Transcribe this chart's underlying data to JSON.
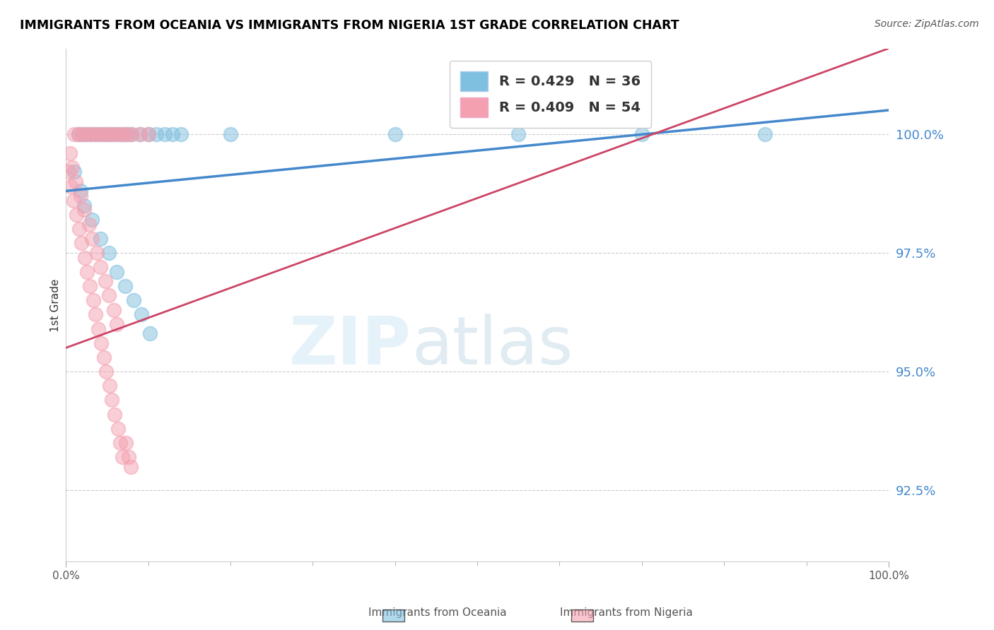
{
  "title": "IMMIGRANTS FROM OCEANIA VS IMMIGRANTS FROM NIGERIA 1ST GRADE CORRELATION CHART",
  "source": "Source: ZipAtlas.com",
  "ylabel": "1st Grade",
  "yticks": [
    92.5,
    95.0,
    97.5,
    100.0
  ],
  "ytick_labels": [
    "92.5%",
    "95.0%",
    "97.5%",
    "100.0%"
  ],
  "xmin": 0.0,
  "xmax": 100.0,
  "ymin": 91.0,
  "ymax": 101.8,
  "legend_blue_label": "R = 0.429   N = 36",
  "legend_pink_label": "R = 0.409   N = 54",
  "blue_color": "#7fbfdf",
  "pink_color": "#f4a0b0",
  "blue_line_color": "#4488cc",
  "pink_line_color": "#cc4466",
  "ytick_color": "#4488cc",
  "blue_scatter_x": [
    1.5,
    2.0,
    2.5,
    3.0,
    3.5,
    4.0,
    4.5,
    5.0,
    5.5,
    6.0,
    6.5,
    7.0,
    7.5,
    8.0,
    9.0,
    10.0,
    11.0,
    12.0,
    13.0,
    14.0,
    20.0,
    40.0,
    55.0,
    70.0,
    85.0,
    1.0,
    1.8,
    2.2,
    3.2,
    4.2,
    5.2,
    6.2,
    7.2,
    8.2,
    9.2,
    10.2
  ],
  "blue_scatter_y": [
    100.0,
    100.0,
    100.0,
    100.0,
    100.0,
    100.0,
    100.0,
    100.0,
    100.0,
    100.0,
    100.0,
    100.0,
    100.0,
    100.0,
    100.0,
    100.0,
    100.0,
    100.0,
    100.0,
    100.0,
    100.0,
    100.0,
    100.0,
    100.0,
    100.0,
    99.2,
    98.8,
    98.5,
    98.2,
    97.8,
    97.5,
    97.1,
    96.8,
    96.5,
    96.2,
    95.8
  ],
  "pink_scatter_x": [
    1.0,
    1.5,
    2.0,
    2.5,
    3.0,
    3.5,
    4.0,
    4.5,
    5.0,
    5.5,
    6.0,
    6.5,
    7.0,
    7.5,
    8.0,
    9.0,
    10.0,
    0.5,
    0.8,
    1.2,
    1.8,
    2.2,
    2.8,
    3.2,
    3.8,
    4.2,
    4.8,
    5.2,
    5.8,
    6.2,
    0.3,
    0.6,
    0.9,
    1.3,
    1.6,
    1.9,
    2.3,
    2.6,
    2.9,
    3.3,
    3.6,
    3.9,
    4.3,
    4.6,
    4.9,
    5.3,
    5.6,
    5.9,
    6.3,
    6.6,
    6.9,
    7.3,
    7.6,
    7.9
  ],
  "pink_scatter_y": [
    100.0,
    100.0,
    100.0,
    100.0,
    100.0,
    100.0,
    100.0,
    100.0,
    100.0,
    100.0,
    100.0,
    100.0,
    100.0,
    100.0,
    100.0,
    100.0,
    100.0,
    99.6,
    99.3,
    99.0,
    98.7,
    98.4,
    98.1,
    97.8,
    97.5,
    97.2,
    96.9,
    96.6,
    96.3,
    96.0,
    99.2,
    98.9,
    98.6,
    98.3,
    98.0,
    97.7,
    97.4,
    97.1,
    96.8,
    96.5,
    96.2,
    95.9,
    95.6,
    95.3,
    95.0,
    94.7,
    94.4,
    94.1,
    93.8,
    93.5,
    93.2,
    93.5,
    93.2,
    93.0
  ],
  "blue_line_x0": 0.0,
  "blue_line_y0": 98.8,
  "blue_line_x1": 100.0,
  "blue_line_y1": 100.5,
  "pink_line_x0": 0.0,
  "pink_line_y0": 95.5,
  "pink_line_x1": 100.0,
  "pink_line_y1": 101.8
}
